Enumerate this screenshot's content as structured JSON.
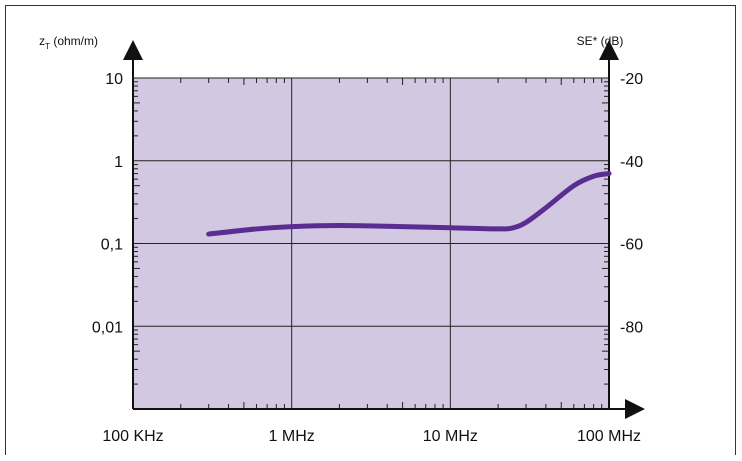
{
  "chart_data": {
    "type": "line",
    "x_scale": "log",
    "y_scale": "log",
    "xlim": [
      "100 KHz",
      "100 MHz"
    ],
    "xlim_hz": [
      100000,
      100000000
    ],
    "ylim": [
      0.001,
      10
    ],
    "y2lim": [
      -100,
      -20
    ],
    "x_ticks": [
      {
        "value": 100000,
        "label": "100 KHz"
      },
      {
        "value": 1000000,
        "label": "1 MHz"
      },
      {
        "value": 10000000,
        "label": "10 MHz"
      },
      {
        "value": 100000000,
        "label": "100 MHz"
      }
    ],
    "y_ticks": [
      {
        "value": 10,
        "label": "10"
      },
      {
        "value": 1,
        "label": "1"
      },
      {
        "value": 0.1,
        "label": "0,1"
      },
      {
        "value": 0.01,
        "label": "0,01"
      }
    ],
    "y2_ticks": [
      {
        "value": -20,
        "label": "-20"
      },
      {
        "value": -40,
        "label": "-40"
      },
      {
        "value": -60,
        "label": "-60"
      },
      {
        "value": -80,
        "label": "-80"
      }
    ],
    "ylabel_main": "z",
    "ylabel_sub": "T",
    "ylabel_unit": " (ohm/m)",
    "y2label": "SE* (dB)",
    "grid": true,
    "colors": {
      "background": "#d2c8e2",
      "line": "#5a2d91",
      "grid": "#222222"
    },
    "series": [
      {
        "x": [
          300000,
          600000,
          1000000,
          2000000,
          5000000,
          10000000,
          20000000,
          25000000,
          30000000,
          40000000,
          60000000,
          80000000,
          100000000
        ],
        "y": [
          0.13,
          0.15,
          0.16,
          0.165,
          0.16,
          0.155,
          0.15,
          0.155,
          0.18,
          0.27,
          0.5,
          0.65,
          0.7
        ]
      }
    ]
  }
}
